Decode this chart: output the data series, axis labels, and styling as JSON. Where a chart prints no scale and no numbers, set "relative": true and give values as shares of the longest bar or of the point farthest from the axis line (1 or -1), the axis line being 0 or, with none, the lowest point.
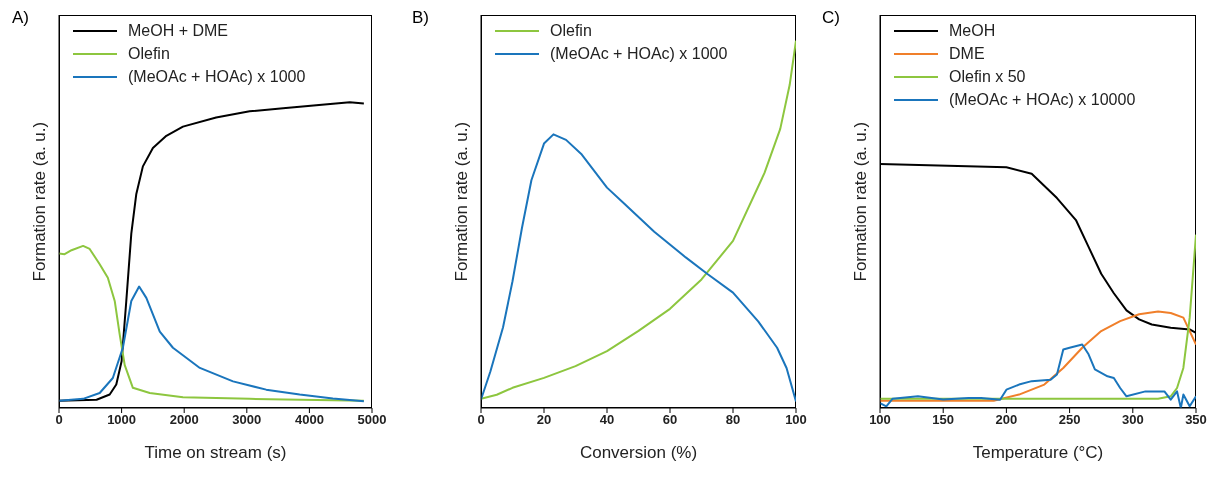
{
  "chart_data": [
    {
      "type": "line",
      "title": "A)",
      "xlabel": "Time on stream (s)",
      "ylabel": "Formation rate (a. u.)",
      "relative": true,
      "xlim": [
        0,
        5000
      ],
      "xticks": [
        0,
        1000,
        2000,
        3000,
        4000,
        5000
      ],
      "grid": false,
      "legend": "top left",
      "marker": "none",
      "line_style": "solid",
      "series": [
        {
          "name": "MeOH + DME",
          "color": "#000000",
          "x": [
            0,
            600,
            810,
            915,
            1000,
            1075,
            1155,
            1235,
            1340,
            1500,
            1715,
            1980,
            2510,
            3045,
            3580,
            4110,
            4645,
            4870
          ],
          "values": [
            0.024,
            0.027,
            0.044,
            0.077,
            0.153,
            0.35,
            0.57,
            0.7,
            0.79,
            0.85,
            0.89,
            0.92,
            0.95,
            0.97,
            0.98,
            0.99,
            1.0,
            0.996
          ]
        },
        {
          "name": "Olefin",
          "color": "#8dc63f",
          "x": [
            0,
            90,
            200,
            385,
            490,
            650,
            780,
            890,
            970,
            1050,
            1180,
            1450,
            1980,
            3045,
            4870
          ],
          "values": [
            0.505,
            0.503,
            0.516,
            0.53,
            0.52,
            0.47,
            0.426,
            0.35,
            0.24,
            0.14,
            0.066,
            0.049,
            0.035,
            0.03,
            0.024
          ]
        },
        {
          "name": "(MeOAc + HOAc) x 1000",
          "color": "#1a75bc",
          "x": [
            0,
            385,
            650,
            860,
            1020,
            1155,
            1280,
            1395,
            1610,
            1820,
            2250,
            2780,
            3310,
            3845,
            4375,
            4870
          ],
          "values": [
            0.024,
            0.03,
            0.049,
            0.098,
            0.197,
            0.35,
            0.397,
            0.36,
            0.25,
            0.197,
            0.131,
            0.087,
            0.06,
            0.044,
            0.031,
            0.022
          ]
        }
      ]
    },
    {
      "type": "line",
      "title": "B)",
      "xlabel": "Conversion (%)",
      "ylabel": "Formation rate (a. u.)",
      "relative": true,
      "xlim": [
        0,
        100
      ],
      "xticks": [
        0,
        20,
        40,
        60,
        80,
        100
      ],
      "grid": false,
      "legend": "top left",
      "marker": "none",
      "line_style": "solid",
      "series": [
        {
          "name": "Olefin",
          "color": "#8dc63f",
          "x": [
            0,
            5,
            10,
            20,
            30,
            40,
            50,
            60,
            70,
            80,
            90,
            95,
            98,
            100
          ],
          "values": [
            0.025,
            0.036,
            0.055,
            0.082,
            0.114,
            0.155,
            0.21,
            0.27,
            0.35,
            0.455,
            0.64,
            0.76,
            0.88,
            1.0
          ]
        },
        {
          "name": "(MeOAc + HOAc) x 1000",
          "color": "#1a75bc",
          "x": [
            0,
            3,
            7,
            10,
            13,
            16,
            20,
            23,
            27,
            32,
            40,
            45,
            55,
            65,
            72,
            80,
            88,
            94,
            97,
            100
          ],
          "values": [
            0.023,
            0.1,
            0.22,
            0.345,
            0.49,
            0.62,
            0.72,
            0.745,
            0.73,
            0.69,
            0.6,
            0.56,
            0.48,
            0.41,
            0.364,
            0.314,
            0.236,
            0.164,
            0.109,
            0.018
          ]
        }
      ]
    },
    {
      "type": "line",
      "title": "C)",
      "xlabel": "Temperature (°C)",
      "ylabel": "Formation rate (a. u.)",
      "relative": true,
      "xlim": [
        100,
        350
      ],
      "xticks": [
        100,
        150,
        200,
        250,
        300,
        350
      ],
      "grid": false,
      "legend": "top left",
      "marker": "none",
      "line_style": "solid",
      "series": [
        {
          "name": "MeOH",
          "color": "#000000",
          "x": [
            100,
            200,
            220,
            240,
            255,
            265,
            275,
            285,
            295,
            305,
            315,
            330,
            345,
            350
          ],
          "values": [
            1.0,
            0.986,
            0.96,
            0.86,
            0.77,
            0.66,
            0.55,
            0.47,
            0.4,
            0.363,
            0.342,
            0.329,
            0.322,
            0.308
          ]
        },
        {
          "name": "DME",
          "color": "#f07f2a",
          "x": [
            100,
            190,
            210,
            230,
            245,
            260,
            275,
            290,
            305,
            320,
            330,
            340,
            350
          ],
          "values": [
            0.03,
            0.03,
            0.055,
            0.096,
            0.164,
            0.247,
            0.315,
            0.356,
            0.384,
            0.395,
            0.389,
            0.37,
            0.26
          ]
        },
        {
          "name": "Olefin x 50",
          "color": "#8dc63f",
          "x": [
            100,
            320,
            330,
            335,
            340,
            345,
            350
          ],
          "values": [
            0.038,
            0.038,
            0.048,
            0.082,
            0.164,
            0.37,
            0.71
          ]
        },
        {
          "name": "(MeOAc + HOAc) x 10000",
          "color": "#1a75bc",
          "x": [
            100,
            105,
            110,
            130,
            150,
            170,
            180,
            195,
            200,
            210,
            220,
            235,
            240,
            245,
            250,
            260,
            265,
            270,
            280,
            285,
            290,
            295,
            310,
            325,
            330,
            335,
            338,
            340,
            345,
            350
          ],
          "values": [
            0.02,
            0.007,
            0.038,
            0.048,
            0.035,
            0.041,
            0.041,
            0.034,
            0.075,
            0.096,
            0.11,
            0.116,
            0.137,
            0.24,
            0.247,
            0.26,
            0.22,
            0.158,
            0.13,
            0.123,
            0.082,
            0.048,
            0.068,
            0.068,
            0.034,
            0.068,
            0.0,
            0.055,
            0.007,
            0.048
          ]
        }
      ]
    }
  ]
}
